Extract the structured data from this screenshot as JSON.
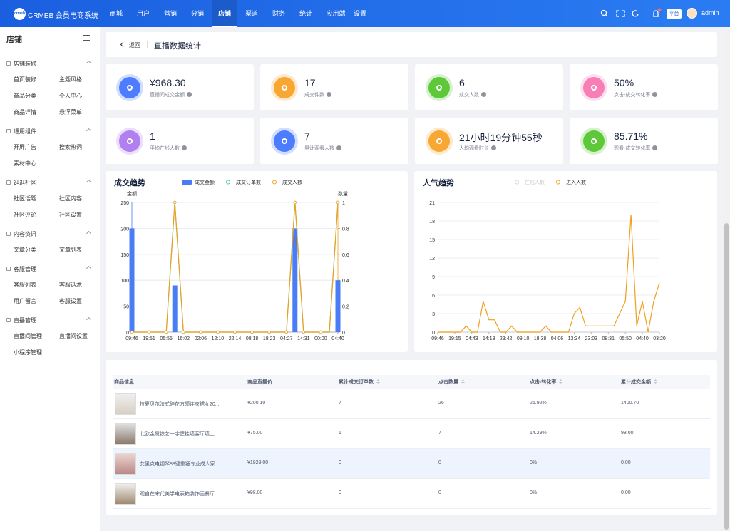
{
  "topbar": {
    "brand": "CRMEB 会员电商系统",
    "logo": "crmeb",
    "nav": [
      "商城",
      "用户",
      "营销",
      "分销",
      "店铺",
      "渠道",
      "财务",
      "统计",
      "应用端",
      "设置"
    ],
    "active": 4,
    "badge": "平台",
    "user": "admin"
  },
  "sidebar": {
    "title": "店铺",
    "groups": [
      {
        "title": "店铺装修",
        "items": [
          "首页装修",
          "主题风格",
          "商品分类",
          "个人中心",
          "商品详情",
          "悬浮菜单"
        ]
      },
      {
        "title": "通用组件",
        "items": [
          "开屏广告",
          "搜索热词",
          "素材中心"
        ]
      },
      {
        "title": "逛逛社区",
        "items": [
          "社区话题",
          "社区内容",
          "社区评论",
          "社区设置"
        ]
      },
      {
        "title": "内容资讯",
        "items": [
          "文章分类",
          "文章列表"
        ]
      },
      {
        "title": "客服管理",
        "items": [
          "客服列表",
          "客服话术",
          "用户留言",
          "客服设置"
        ]
      },
      {
        "title": "直播管理",
        "items": [
          "直播间管理",
          "直播间设置",
          "小程序管理"
        ]
      }
    ]
  },
  "page_header": {
    "back": "返回",
    "title": "直播数据统计"
  },
  "stats": [
    {
      "value": "¥968.30",
      "label": "直播间成交金额",
      "color": "#4d7cfe"
    },
    {
      "value": "17",
      "label": "成交件数",
      "color": "#f7a732"
    },
    {
      "value": "6",
      "label": "成交人数",
      "color": "#5ec83a"
    },
    {
      "value": "50%",
      "label": "点击-成交转化率",
      "color": "#f87fb6"
    },
    {
      "value": "1",
      "label": "平均在线人数",
      "color": "#b27ff0"
    },
    {
      "value": "7",
      "label": "累计观看人数",
      "color": "#4d7cfe"
    },
    {
      "value": "21小时19分钟55秒",
      "label": "人均观看时长",
      "color": "#f7a732"
    },
    {
      "value": "85.71%",
      "label": "观看-成交转化率",
      "color": "#5ec83a"
    }
  ],
  "charts": [
    {
      "type": "bar",
      "title": "成交趋势",
      "ylabel": "金额",
      "y2label": "数量",
      "categories": [
        "09:46",
        null,
        "19:51",
        null,
        "05:55",
        null,
        "16:02",
        null,
        "02:06",
        null,
        "12:10",
        null,
        "22:14",
        null,
        "08:18",
        null,
        "18:23",
        null,
        "04:27",
        null,
        "14:31",
        null,
        "00:00",
        null,
        "04:40"
      ],
      "series": [
        {
          "name": "成交金额",
          "color": "#4a7cf6",
          "type": "bar",
          "values": [
            200,
            0,
            0,
            0,
            0,
            90,
            0,
            0,
            0,
            0,
            0,
            0,
            0,
            0,
            0,
            0,
            0,
            0,
            0,
            200,
            0,
            0,
            0,
            0,
            100
          ]
        },
        {
          "name": "成交订单数",
          "color": "#3fc8a0",
          "type": "line",
          "axis": "y2",
          "values": [
            0,
            0,
            0,
            0,
            0,
            1,
            0,
            0,
            0,
            0,
            0,
            0,
            0,
            0,
            0,
            0,
            0,
            0,
            0,
            1,
            0,
            0,
            0,
            0,
            1
          ]
        },
        {
          "name": "成交人数",
          "color": "#f0a020",
          "type": "line",
          "axis": "y2",
          "values": [
            0,
            0,
            0,
            0,
            0,
            1,
            0,
            0,
            0,
            0,
            0,
            0,
            0,
            0,
            0,
            0,
            0,
            0,
            0,
            1,
            0,
            0,
            0,
            0,
            1
          ]
        }
      ],
      "ylim": [
        0,
        250
      ],
      "yticks": [
        0,
        50,
        100,
        150,
        200,
        250
      ],
      "y2lim": [
        0,
        1
      ],
      "y2ticks": [
        0,
        0.2,
        0.4,
        0.6,
        0.8,
        1
      ]
    },
    {
      "type": "line",
      "title": "人气趋势",
      "categories": [
        "09:46",
        null,
        null,
        "19:15",
        null,
        null,
        "04:43",
        null,
        null,
        "14:13",
        null,
        null,
        "23:42",
        null,
        null,
        "09:10",
        null,
        null,
        "18:38",
        null,
        null,
        "04:06",
        null,
        null,
        "13:34",
        null,
        null,
        "23:03",
        null,
        null,
        "08:31",
        null,
        null,
        "05:50",
        null,
        null,
        "04:40",
        null,
        null,
        "03:20"
      ],
      "series": [
        {
          "name": "在线人数",
          "color": "#d4d4d4",
          "values": [
            0,
            0,
            0,
            0,
            0,
            0,
            0,
            0,
            0,
            0,
            0,
            0,
            0,
            0,
            0,
            0,
            0,
            0,
            0,
            0,
            0,
            0,
            0,
            0,
            0,
            0,
            0,
            0,
            0,
            0,
            0,
            0,
            0,
            0,
            0,
            0,
            0,
            0,
            0,
            0
          ]
        },
        {
          "name": "进入人数",
          "color": "#f0a020",
          "values": [
            0,
            0,
            0,
            0,
            0,
            1,
            0,
            0,
            5,
            2,
            2,
            0,
            0,
            1,
            0,
            0,
            0,
            0,
            0,
            1,
            0,
            0,
            0,
            0,
            3,
            4,
            1,
            1,
            1,
            1,
            1,
            1,
            3,
            5,
            19,
            1,
            5,
            0,
            5,
            8
          ]
        }
      ],
      "ylim": [
        0,
        21
      ],
      "yticks": [
        0,
        3,
        6,
        9,
        12,
        15,
        18,
        21
      ]
    }
  ],
  "table": {
    "columns": [
      "商品信息",
      "商品直播价",
      "累计成交订单数",
      "点击数量",
      "点击-转化率",
      "累计成交金额"
    ],
    "sortable": [
      false,
      false,
      true,
      true,
      true,
      true
    ],
    "highlight_row": 2,
    "rows": [
      [
        "拉夏贝尔法式碎花方领连衣裙女20...",
        "¥200.10",
        "7",
        "26",
        "26.92%",
        "1400.70"
      ],
      [
        "北欧金属铁艺一字壁挂墙客厅墙上...",
        "¥75.00",
        "1",
        "7",
        "14.29%",
        "98.00"
      ],
      [
        "艾里克电钢琴88键重锤专业成人家...",
        "¥1929.00",
        "0",
        "0",
        "0%",
        "0.00"
      ],
      [
        "观自在宋代美学电表箱装饰画餐厅...",
        "¥98.00",
        "0",
        "0",
        "0%",
        "0.00"
      ]
    ]
  }
}
